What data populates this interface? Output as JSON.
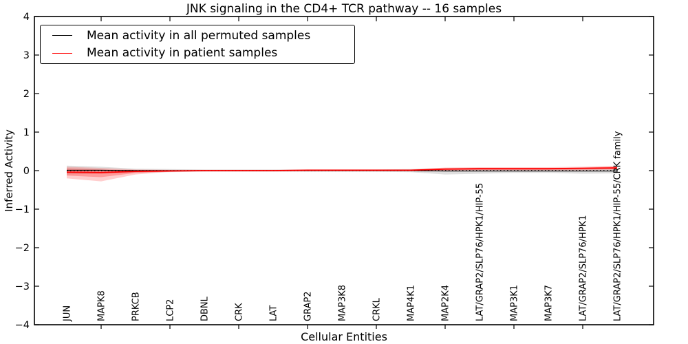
{
  "title": "JNK signaling in the CD4+ TCR pathway -- 16 samples",
  "axes": {
    "x_label": "Cellular Entities",
    "y_label": "Inferred Activity",
    "y_ticks": [
      4,
      3,
      2,
      1,
      0,
      -1,
      -2,
      -3,
      -4
    ]
  },
  "legend": {
    "position": "upper-left",
    "items": [
      {
        "label": "Mean activity in all permuted samples",
        "color": "#000000"
      },
      {
        "label": "Mean activity in patient samples",
        "color": "#ff0000"
      }
    ]
  },
  "colors": {
    "patient_line": "#ff0000",
    "permuted_line": "#000000",
    "patient_band": "#ff3c3c",
    "permuted_band": "#bfbfbf",
    "zero_line": "#000000",
    "spine": "#000000"
  },
  "chart_data": {
    "type": "line",
    "title": "JNK signaling in the CD4+ TCR pathway -- 16 samples",
    "xlabel": "Cellular Entities",
    "ylabel": "Inferred Activity",
    "ylim": [
      -4,
      4
    ],
    "grid": false,
    "legend_position": "upper-left",
    "categories": [
      "JUN",
      "MAPK8",
      "PRKCB",
      "LCP2",
      "DBNL",
      "CRK",
      "LAT",
      "GRAP2",
      "MAP3K8",
      "CRKL",
      "MAP4K1",
      "MAP2K4",
      "LAT/GRAP2/SLP76/HPK1/HIP-55",
      "MAP3K1",
      "MAP3K7",
      "LAT/GRAP2/SLP76/HPK1",
      "LAT/GRAP2/SLP76/HPK1/HIP-55/CRK family"
    ],
    "series": [
      {
        "name": "Mean activity in all permuted samples",
        "color": "#000000",
        "width": 1.2,
        "values": [
          0.01,
          0.01,
          0.0,
          0.0,
          0.0,
          0.0,
          0.0,
          0.0,
          0.0,
          0.0,
          0.0,
          -0.01,
          -0.01,
          -0.01,
          -0.01,
          -0.01,
          -0.01
        ]
      },
      {
        "name": "Mean activity in patient samples",
        "color": "#ff0000",
        "width": 1.8,
        "values": [
          -0.04,
          -0.05,
          -0.02,
          -0.01,
          0.0,
          0.0,
          0.0,
          0.01,
          0.01,
          0.01,
          0.01,
          0.04,
          0.05,
          0.05,
          0.05,
          0.06,
          0.07
        ]
      }
    ],
    "bands": [
      {
        "name": "permuted-range-band",
        "color": "#bfbfbf",
        "opacity": 0.5,
        "upper": [
          0.13,
          0.1,
          0.05,
          0.04,
          0.03,
          0.03,
          0.03,
          0.03,
          0.03,
          0.03,
          0.04,
          0.06,
          0.07,
          0.06,
          0.06,
          0.07,
          0.08
        ],
        "lower": [
          -0.1,
          -0.08,
          -0.05,
          -0.04,
          -0.03,
          -0.03,
          -0.03,
          -0.03,
          -0.03,
          -0.03,
          -0.04,
          -0.1,
          -0.08,
          -0.06,
          -0.06,
          -0.08,
          -0.07
        ]
      },
      {
        "name": "patient-outer-band",
        "color": "#ff3c3c",
        "opacity": 0.25,
        "upper": [
          0.1,
          0.07,
          0.03,
          0.02,
          0.02,
          0.02,
          0.02,
          0.03,
          0.03,
          0.03,
          0.03,
          0.08,
          0.09,
          0.09,
          0.09,
          0.1,
          0.13
        ],
        "lower": [
          -0.2,
          -0.28,
          -0.1,
          -0.03,
          -0.02,
          -0.02,
          -0.02,
          -0.01,
          -0.01,
          -0.01,
          -0.01,
          0.0,
          0.01,
          0.01,
          0.01,
          0.01,
          0.02
        ]
      },
      {
        "name": "patient-inner-band",
        "color": "#ff3c3c",
        "opacity": 0.35,
        "upper": [
          0.06,
          0.03,
          0.01,
          0.01,
          0.01,
          0.01,
          0.01,
          0.02,
          0.02,
          0.02,
          0.02,
          0.06,
          0.07,
          0.07,
          0.07,
          0.08,
          0.1
        ],
        "lower": [
          -0.13,
          -0.17,
          -0.06,
          -0.02,
          -0.01,
          -0.01,
          -0.01,
          0.0,
          0.0,
          0.0,
          0.0,
          0.01,
          0.02,
          0.02,
          0.02,
          0.03,
          0.04
        ]
      }
    ],
    "reference_line": {
      "y": 0,
      "style": "dotted",
      "color": "#000000"
    }
  }
}
